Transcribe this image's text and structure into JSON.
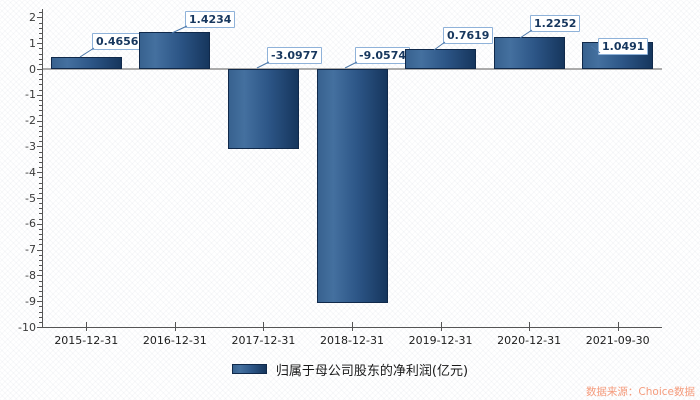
{
  "chart_data": {
    "type": "bar",
    "title": "",
    "xlabel": "",
    "ylabel": "",
    "categories": [
      "2015-12-31",
      "2016-12-31",
      "2017-12-31",
      "2018-12-31",
      "2019-12-31",
      "2020-12-31",
      "2021-09-30"
    ],
    "series": [
      {
        "name": "归属于母公司股东的净利润(亿元)",
        "values": [
          0.4656,
          1.4234,
          -3.0977,
          -9.0574,
          0.7619,
          1.2252,
          1.0491
        ]
      }
    ],
    "value_labels": [
      "0.4656",
      "1.4234",
      "-3.0977",
      "-9.0574",
      "0.7619",
      "1.2252",
      "1.0491"
    ],
    "ylim": [
      -10,
      2
    ],
    "y_major_step": 1,
    "y_minor_step": 0.2,
    "grid": false,
    "legend_position": "bottom"
  },
  "watermark": {
    "text": "数据来源：Choice数据"
  },
  "colors": {
    "bar_gradient_left": "#44709f",
    "bar_gradient_right": "#16365d",
    "bar_border": "#10294a",
    "value_label_text": "#17375e",
    "value_label_border": "#8fb2d9",
    "axis": "#555555",
    "zero_line": "#ababab",
    "y_tick_text": "#3a3a3a",
    "x_tick_text": "#1c1c1c",
    "legend_text": "#1a1a1a",
    "watermark": "#f59b7c"
  }
}
